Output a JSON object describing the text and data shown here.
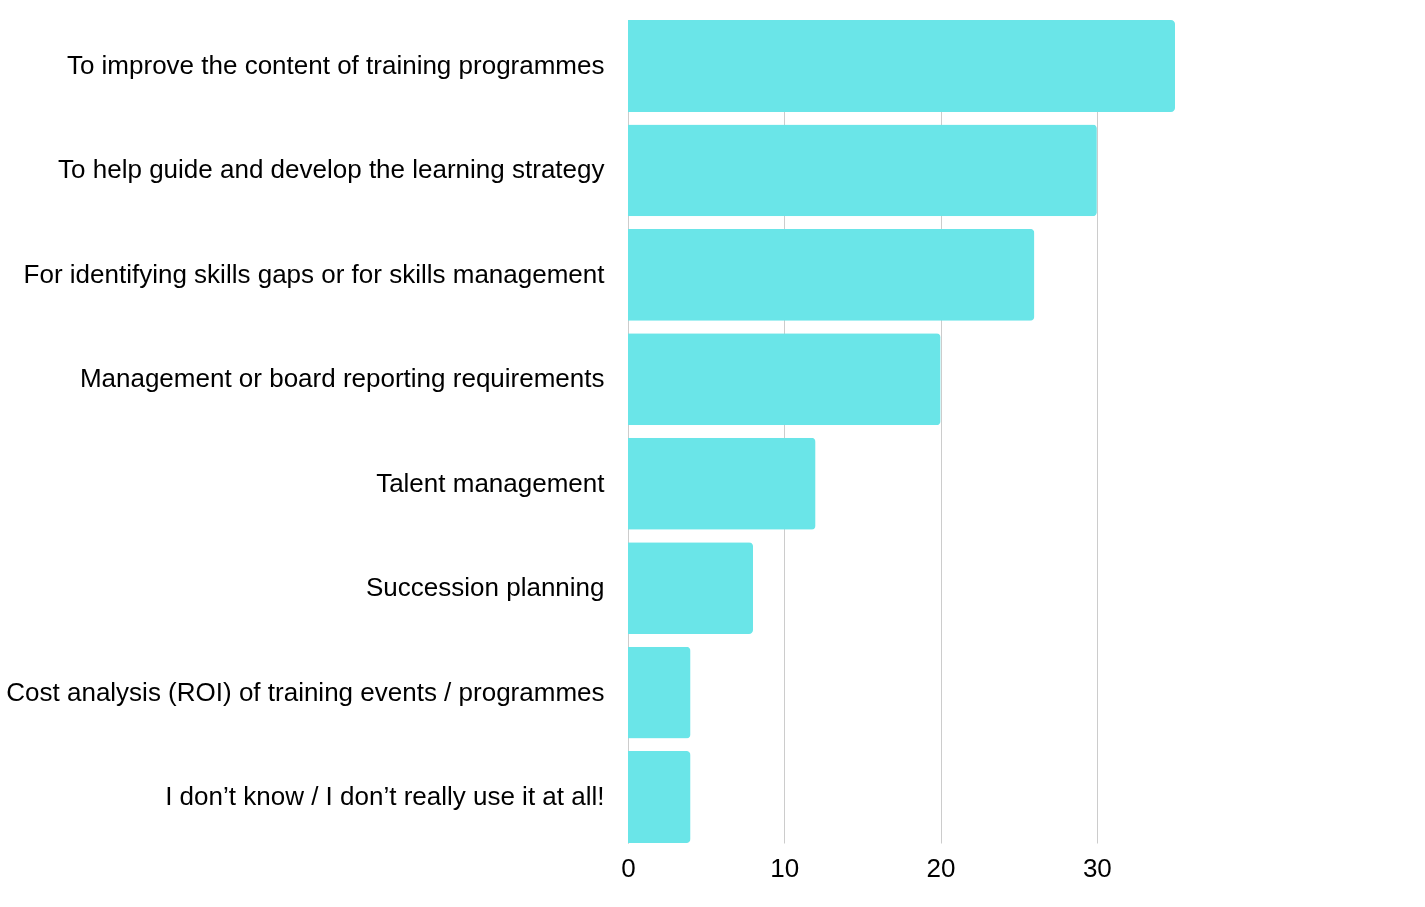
{
  "chart_data": {
    "type": "bar",
    "orientation": "horizontal",
    "categories": [
      "To improve the content of training programmes",
      "To help guide and develop the learning strategy",
      "For identifying skills gaps or for skills management",
      "Management or board reporting requirements",
      "Talent management",
      "Succession planning",
      "Cost analysis (ROI) of training events / programmes",
      "I don’t know / I don’t really use it at all!"
    ],
    "values": [
      35,
      30,
      26,
      20,
      12,
      8,
      4,
      4
    ],
    "color": "#6ae5e8",
    "xlim": [
      0,
      35
    ],
    "xticks": [
      0,
      10,
      20,
      30
    ],
    "grid": "x"
  }
}
